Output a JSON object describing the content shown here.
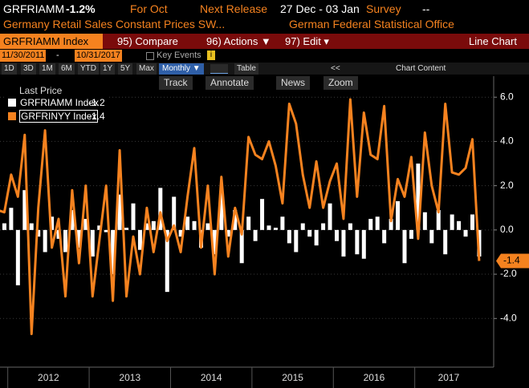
{
  "header": {
    "ticker": "GRFRIAMM",
    "change": "-1.2%",
    "period": "For Oct",
    "next_release_label": "Next Release",
    "next_release": "27 Dec - 03 Jan",
    "survey_label": "Survey",
    "survey": "--",
    "description": "Germany Retail Sales Constant Prices SW...",
    "source": "German Federal Statistical Office"
  },
  "menu": {
    "security": "GRFRIAMM Index",
    "items": [
      "95) Compare",
      "96) Actions ▼",
      "97) Edit ▾"
    ],
    "view": "Line Chart"
  },
  "range": {
    "start": "11/30/2011",
    "separator": "-",
    "end": "10/31/2017",
    "key_events": "Key Events"
  },
  "toolbar": {
    "periods": [
      "1D",
      "3D",
      "1M",
      "6M",
      "YTD",
      "1Y",
      "5Y",
      "Max"
    ],
    "frequency": "Monthly ▼",
    "table": "Table",
    "collapse": "<<",
    "chart_content": "Chart Content"
  },
  "chart_tools": [
    "Track",
    "Annotate",
    "News",
    "Zoom"
  ],
  "chart_data": {
    "type": "combo",
    "legend_title": "Last Price",
    "year_labels": [
      "2012",
      "2013",
      "2014",
      "2015",
      "2016",
      "2017"
    ],
    "ylim": [
      -6.2,
      6.95
    ],
    "yticks": [
      {
        "value": -4,
        "label": "-4.0"
      },
      {
        "value": -2,
        "label": "-2.0"
      },
      {
        "value": 0,
        "label": "0.0"
      },
      {
        "value": 2,
        "label": "2.0"
      },
      {
        "value": 4,
        "label": "4.0"
      },
      {
        "value": 6,
        "label": "6.0"
      }
    ],
    "grid": true,
    "series": [
      {
        "name": "GRFRIAMM Index",
        "type": "bar",
        "color": "#ffffff",
        "values": [
          0.8,
          0.3,
          1.0,
          -2.5,
          1.8,
          0.3,
          -0.3,
          -1.0,
          0.6,
          -0.4,
          -1.0,
          0.9,
          -0.8,
          0.5,
          -1.2,
          0.2,
          -0.1,
          -2.0,
          1.6,
          0.1,
          1.2,
          -0.9,
          0.3,
          0.4,
          1.9,
          -2.8,
          1.5,
          -0.3,
          0.6,
          0.4,
          -0.8,
          0.3,
          -1.1,
          1.7,
          -0.3,
          0.9,
          -1.5,
          0.6,
          -0.5,
          1.4,
          0.2,
          0.1,
          0.6,
          -0.6,
          -1.0,
          0.3,
          -0.3,
          -0.7,
          0.3,
          1.2,
          -0.5,
          -1.2,
          0.3,
          -1.1,
          -1.3,
          0.5,
          0.6,
          -0.6,
          0.5,
          1.3,
          -1.5,
          -0.4,
          3.0,
          0.8,
          -0.6,
          0.9,
          -1.1,
          0.7,
          0.4,
          -0.3,
          0.7,
          -1.2
        ]
      },
      {
        "name": "GRFRINYY Index",
        "type": "line",
        "color": "#f5821f",
        "values": [
          0.9,
          0.8,
          2.5,
          1.5,
          4.3,
          -4.7,
          1.0,
          4.5,
          -0.8,
          0.5,
          -3.0,
          1.8,
          -1.5,
          2.0,
          -3.0,
          -0.5,
          2.0,
          -3.2,
          3.6,
          -3.0,
          -0.3,
          -2.0,
          1.0,
          -1.0,
          0.8,
          -0.5,
          0.2,
          -1.0,
          1.5,
          3.7,
          -0.8,
          2.0,
          -2.0,
          2.4,
          -1.2,
          1.0,
          -0.2,
          4.2,
          3.4,
          3.2,
          4.0,
          2.9,
          1.2,
          5.7,
          4.8,
          2.5,
          1.0,
          3.1,
          1.0,
          2.2,
          3.0,
          0.5,
          5.9,
          1.5,
          5.3,
          3.4,
          3.2,
          5.6,
          0.4,
          2.3,
          1.5,
          3.3,
          -0.4,
          4.4,
          2.0,
          0.8,
          5.7,
          2.6,
          2.5,
          2.8,
          4.1,
          -1.4
        ]
      }
    ]
  }
}
